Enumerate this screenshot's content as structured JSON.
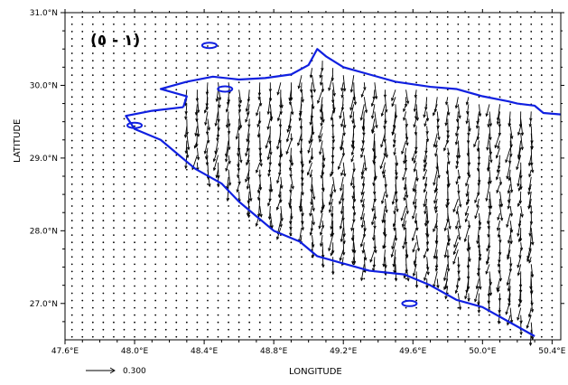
{
  "figure": {
    "panel_label": "(١ - ٥)",
    "xlabel": "LONGITUDE",
    "ylabel": "LATITUDE",
    "reference_vector": {
      "magnitude": 0.3,
      "label": "0.300"
    },
    "colors": {
      "coastline": "#1020e0",
      "vectors": "#000000",
      "grid_dots": "#000000",
      "background": "#ffffff"
    }
  },
  "chart_data": {
    "type": "vector-field",
    "title": "",
    "xlabel": "LONGITUDE",
    "ylabel": "LATITUDE",
    "xlim": [
      47.6,
      50.45
    ],
    "ylim": [
      26.5,
      31.0
    ],
    "x_ticks": [
      {
        "value": 47.6,
        "label": "47.6°E"
      },
      {
        "value": 48.0,
        "label": "48.0°E"
      },
      {
        "value": 48.4,
        "label": "48.4°E"
      },
      {
        "value": 48.8,
        "label": "48.8°E"
      },
      {
        "value": 49.2,
        "label": "49.2°E"
      },
      {
        "value": 49.6,
        "label": "49.6°E"
      },
      {
        "value": 50.0,
        "label": "50.0°E"
      },
      {
        "value": 50.4,
        "label": "50.4°E"
      }
    ],
    "y_ticks": [
      {
        "value": 27.0,
        "label": "27.0°N"
      },
      {
        "value": 28.0,
        "label": "28.0°N"
      },
      {
        "value": 29.0,
        "label": "29.0°N"
      },
      {
        "value": 30.0,
        "label": "30.0°N"
      },
      {
        "value": 31.0,
        "label": "31.0°N"
      }
    ],
    "grid_spacing": {
      "dlon": 0.06,
      "dlat": 0.1
    },
    "coastline": [
      [
        48.3,
        30.05
      ],
      [
        48.45,
        30.12
      ],
      [
        48.6,
        30.08
      ],
      [
        48.75,
        30.1
      ],
      [
        48.9,
        30.15
      ],
      [
        49.0,
        30.28
      ],
      [
        49.05,
        30.5
      ],
      [
        49.1,
        30.4
      ],
      [
        49.2,
        30.25
      ],
      [
        49.35,
        30.15
      ],
      [
        49.5,
        30.05
      ],
      [
        49.7,
        29.98
      ],
      [
        49.85,
        29.95
      ],
      [
        50.0,
        29.85
      ],
      [
        50.15,
        29.78
      ],
      [
        50.2,
        29.75
      ],
      [
        50.3,
        29.72
      ],
      [
        50.35,
        29.62
      ],
      [
        50.45,
        29.6
      ]
    ],
    "coastline_south": [
      [
        48.28,
        29.7
      ],
      [
        48.1,
        29.65
      ],
      [
        47.95,
        29.58
      ],
      [
        48.0,
        29.4
      ],
      [
        48.15,
        29.25
      ],
      [
        48.25,
        29.05
      ],
      [
        48.35,
        28.85
      ],
      [
        48.5,
        28.65
      ],
      [
        48.6,
        28.4
      ],
      [
        48.7,
        28.2
      ],
      [
        48.8,
        28.0
      ],
      [
        48.95,
        27.85
      ],
      [
        49.05,
        27.65
      ],
      [
        49.2,
        27.55
      ],
      [
        49.35,
        27.45
      ],
      [
        49.55,
        27.4
      ],
      [
        49.7,
        27.25
      ],
      [
        49.85,
        27.05
      ],
      [
        50.0,
        26.95
      ],
      [
        50.15,
        26.75
      ],
      [
        50.3,
        26.55
      ]
    ],
    "islands": [
      {
        "lon": 48.52,
        "lat": 29.95
      },
      {
        "lon": 48.43,
        "lat": 30.55
      },
      {
        "lon": 49.58,
        "lat": 27.0
      },
      {
        "lon": 48.0,
        "lat": 29.45
      }
    ]
  }
}
